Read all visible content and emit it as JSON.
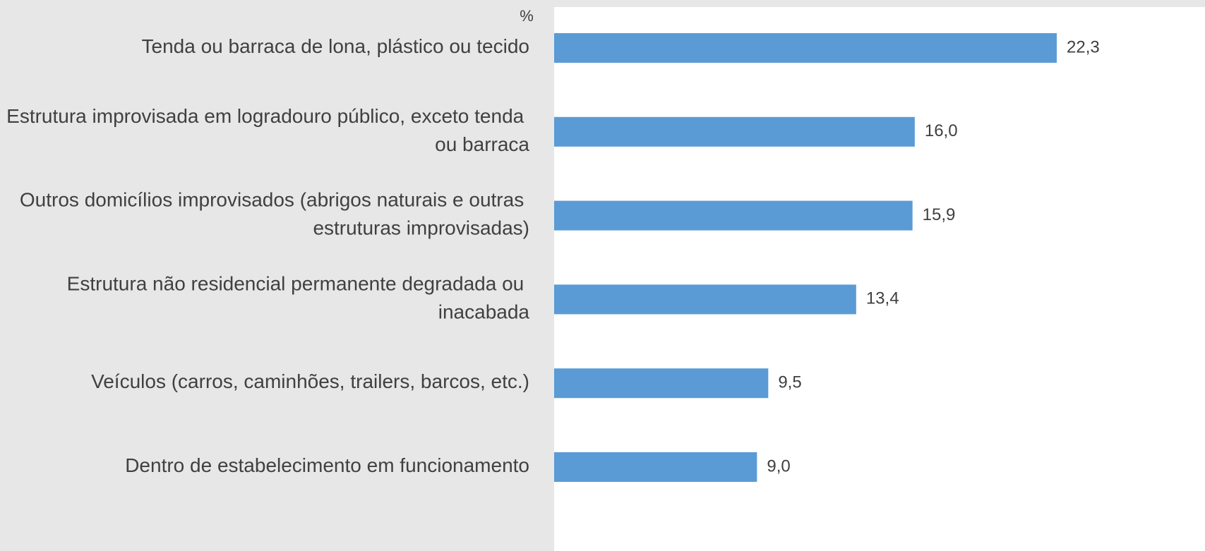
{
  "chart_data": {
    "type": "hbar",
    "xlabel": "%",
    "categories": [
      "Tenda ou barraca de lona, plástico ou tecido",
      "Estrutura improvisada em logradouro público, exceto tenda ou barraca",
      "Outros domicílios improvisados (abrigos naturais e outras estruturas improvisadas)",
      "Estrutura não residencial permanente degradada ou inacabada",
      "Veículos (carros, caminhões, trailers, barcos, etc.)",
      "Dentro de estabelecimento em funcionamento"
    ],
    "values": [
      22.3,
      16.0,
      15.9,
      13.4,
      9.5,
      9.0
    ],
    "value_labels": [
      "22,3",
      "16,0",
      "15,9",
      "13,4",
      "9,5",
      "9,0"
    ],
    "color": "#5b9bd5"
  }
}
